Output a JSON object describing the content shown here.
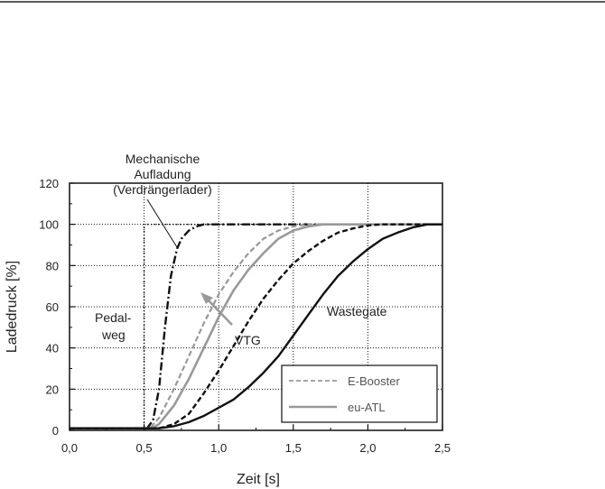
{
  "chart_data": {
    "type": "line",
    "title": "",
    "xlabel": "Zeit [s]",
    "ylabel": "Ladedruck [%]",
    "xlim": [
      0,
      2.5
    ],
    "ylim": [
      0,
      120
    ],
    "x_ticks": [
      "0,0",
      "0,5",
      "1,0",
      "1,5",
      "2,0",
      "2,5"
    ],
    "y_ticks": [
      "0",
      "20",
      "40",
      "60",
      "80",
      "100",
      "120"
    ],
    "grid": true,
    "legend_position": "bottom-right",
    "legend": [
      {
        "label": "E-Booster",
        "color": "#999999",
        "style": "dashed"
      },
      {
        "label": "eu-ATL",
        "color": "#999999",
        "style": "solid"
      }
    ],
    "annotations": {
      "mechanisch_line1": "Mechanische",
      "mechanisch_line2": "Aufladung",
      "mechanisch_line3": "(Verdrängerlader)",
      "pedal_line1": "Pedal-",
      "pedal_line2": "weg",
      "vtg": "VTG",
      "wastegate": "Wastegate"
    },
    "series": [
      {
        "key": "pedal",
        "color": "#111111",
        "style": "dotted",
        "x": [
          0,
          0.5,
          0.5,
          2.5
        ],
        "y": [
          1,
          1,
          100,
          100
        ]
      },
      {
        "key": "mech",
        "color": "#111111",
        "style": "dashdot",
        "x": [
          0,
          0.52,
          0.56,
          0.6,
          0.64,
          0.68,
          0.72,
          0.75,
          0.8,
          0.85,
          0.9,
          0.95,
          1.0,
          2.5
        ],
        "y": [
          1,
          1,
          5,
          20,
          50,
          75,
          88,
          93,
          97,
          99,
          100,
          100,
          100,
          100
        ]
      },
      {
        "key": "ebooster",
        "color": "#999999",
        "style": "dashed",
        "x": [
          0,
          0.52,
          0.55,
          0.6,
          0.7,
          0.8,
          0.9,
          1.0,
          1.1,
          1.2,
          1.3,
          1.4,
          1.5,
          1.6,
          2.5
        ],
        "y": [
          1,
          1,
          2,
          6,
          20,
          36,
          52,
          66,
          77,
          86,
          93,
          97,
          99,
          100,
          100
        ]
      },
      {
        "key": "euatl",
        "color": "#999999",
        "style": "solid",
        "x": [
          0,
          0.55,
          0.6,
          0.7,
          0.8,
          0.9,
          1.0,
          1.1,
          1.2,
          1.3,
          1.4,
          1.5,
          1.6,
          1.7,
          2.5
        ],
        "y": [
          1,
          1,
          3,
          12,
          25,
          40,
          55,
          68,
          78,
          86,
          93,
          97,
          99,
          100,
          100
        ]
      },
      {
        "key": "vtg",
        "color": "#111111",
        "style": "dashed",
        "x": [
          0,
          0.6,
          0.7,
          0.8,
          0.9,
          1.0,
          1.1,
          1.2,
          1.3,
          1.4,
          1.5,
          1.6,
          1.7,
          1.8,
          1.9,
          2.0,
          2.1,
          2.5
        ],
        "y": [
          1,
          1,
          3,
          8,
          18,
          29,
          41,
          53,
          64,
          73,
          81,
          87,
          92,
          96,
          98,
          99.5,
          100,
          100
        ]
      },
      {
        "key": "wastegate",
        "color": "#111111",
        "style": "solid",
        "x": [
          0,
          0.6,
          0.7,
          0.8,
          0.9,
          1.0,
          1.1,
          1.2,
          1.3,
          1.4,
          1.5,
          1.6,
          1.7,
          1.8,
          1.9,
          2.0,
          2.1,
          2.2,
          2.3,
          2.4,
          2.45,
          2.5
        ],
        "y": [
          1,
          1,
          2,
          4,
          7,
          11,
          15,
          21,
          28,
          36,
          46,
          56,
          66,
          75,
          82,
          88,
          93,
          96,
          98.5,
          100,
          100,
          100
        ]
      }
    ]
  }
}
